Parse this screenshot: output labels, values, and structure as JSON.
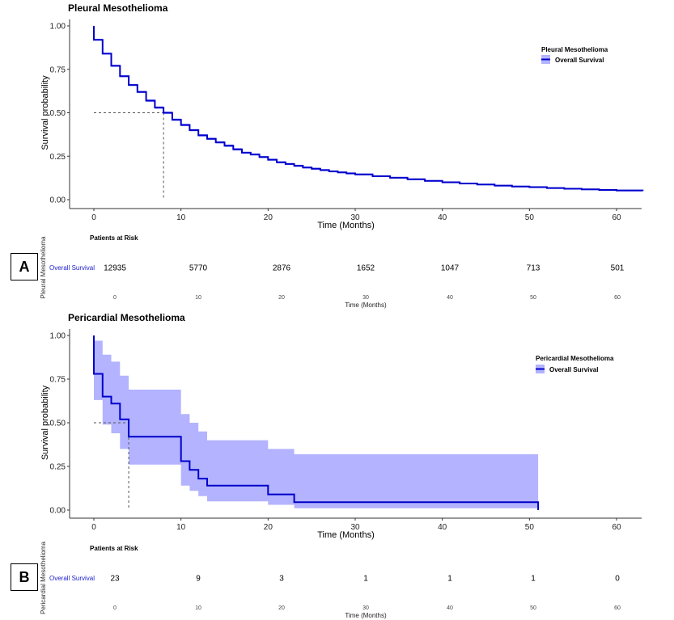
{
  "chart_data": [
    {
      "type": "line",
      "subtype": "kaplan-meier",
      "title": "Pleural Mesothelioma",
      "xlabel": "Time (Months)",
      "ylabel": "Survival probability",
      "xlim": [
        -3,
        63
      ],
      "ylim": [
        0,
        1
      ],
      "xticks": [
        0,
        10,
        20,
        30,
        40,
        50,
        60
      ],
      "yticks": [
        0.0,
        0.25,
        0.5,
        0.75,
        1.0
      ],
      "ytick_labels": [
        "0.00",
        "0.25",
        "0.50",
        "0.75",
        "1.00"
      ],
      "legend_title": "Pleural Mesothelioma",
      "legend_position": "top-right",
      "series": [
        {
          "name": "Overall Survival",
          "color": "#0000cc",
          "ci_color": "#b3b3ff",
          "x": [
            0,
            1,
            2,
            3,
            4,
            5,
            6,
            7,
            8,
            9,
            10,
            11,
            12,
            13,
            14,
            15,
            16,
            17,
            18,
            19,
            20,
            21,
            22,
            23,
            24,
            25,
            26,
            27,
            28,
            29,
            30,
            32,
            34,
            36,
            38,
            40,
            42,
            44,
            46,
            48,
            50,
            52,
            54,
            56,
            58,
            60,
            63
          ],
          "y": [
            0.92,
            0.84,
            0.77,
            0.71,
            0.66,
            0.62,
            0.57,
            0.53,
            0.5,
            0.46,
            0.43,
            0.4,
            0.37,
            0.35,
            0.33,
            0.31,
            0.29,
            0.27,
            0.26,
            0.245,
            0.23,
            0.215,
            0.205,
            0.195,
            0.185,
            0.178,
            0.17,
            0.163,
            0.157,
            0.151,
            0.145,
            0.135,
            0.126,
            0.117,
            0.108,
            0.1,
            0.093,
            0.087,
            0.081,
            0.076,
            0.072,
            0.067,
            0.063,
            0.059,
            0.056,
            0.053,
            0.05
          ],
          "ci_half_width": [
            0.005,
            0.005,
            0.006,
            0.006,
            0.006,
            0.006,
            0.007,
            0.007,
            0.007,
            0.007,
            0.007,
            0.007,
            0.007,
            0.007,
            0.007,
            0.007,
            0.007,
            0.006,
            0.006,
            0.006,
            0.006,
            0.006,
            0.006,
            0.006,
            0.006,
            0.006,
            0.006,
            0.006,
            0.006,
            0.006,
            0.006,
            0.005,
            0.005,
            0.005,
            0.005,
            0.005,
            0.005,
            0.005,
            0.005,
            0.005,
            0.005,
            0.005,
            0.005,
            0.005,
            0.005,
            0.005,
            0.005
          ]
        }
      ],
      "median": 8,
      "risk_table": {
        "title": "Patients at Risk",
        "strata_label": "Pleural Mesothelioma",
        "row_label": "Overall Survival",
        "times": [
          0,
          10,
          20,
          30,
          40,
          50,
          60
        ],
        "time_labels": [
          "0",
          "10",
          "20",
          "30",
          "40",
          "50",
          "60"
        ],
        "counts": [
          "12935",
          "5770",
          "2876",
          "1652",
          "1047",
          "713",
          "501"
        ],
        "xlabel": "Time (Months)"
      },
      "panel_label": "A"
    },
    {
      "type": "line",
      "subtype": "kaplan-meier",
      "title": "Pericardial Mesothelioma",
      "xlabel": "Time (Months)",
      "ylabel": "Survival probability",
      "xlim": [
        -3,
        63
      ],
      "ylim": [
        0,
        1
      ],
      "xticks": [
        0,
        10,
        20,
        30,
        40,
        50,
        60
      ],
      "yticks": [
        0.0,
        0.25,
        0.5,
        0.75,
        1.0
      ],
      "ytick_labels": [
        "0.00",
        "0.25",
        "0.50",
        "0.75",
        "1.00"
      ],
      "legend_title": "Pericardial Mesothelioma",
      "legend_position": "top-right",
      "series": [
        {
          "name": "Overall Survival",
          "color": "#0000cc",
          "ci_color": "#b3b3ff",
          "x": [
            0,
            1,
            2,
            3,
            4,
            10,
            11,
            12,
            13,
            20,
            23,
            51
          ],
          "y": [
            0.78,
            0.65,
            0.61,
            0.52,
            0.42,
            0.28,
            0.23,
            0.18,
            0.14,
            0.09,
            0.045,
            0.01
          ],
          "ci_lower": [
            0.63,
            0.49,
            0.44,
            0.35,
            0.26,
            0.14,
            0.11,
            0.08,
            0.05,
            0.03,
            0.01,
            0.01
          ],
          "ci_upper": [
            0.97,
            0.89,
            0.85,
            0.77,
            0.69,
            0.55,
            0.5,
            0.45,
            0.4,
            0.35,
            0.32,
            0.32
          ]
        }
      ],
      "median": 4,
      "risk_table": {
        "title": "Patients at Risk",
        "strata_label": "Pericardial Mesothelioma",
        "row_label": "Overall Survival",
        "times": [
          0,
          10,
          20,
          30,
          40,
          50,
          60
        ],
        "time_labels": [
          "0",
          "10",
          "20",
          "30",
          "40",
          "50",
          "60"
        ],
        "counts": [
          "23",
          "9",
          "3",
          "1",
          "1",
          "1",
          "0"
        ],
        "xlabel": "Time (Months)"
      },
      "panel_label": "B"
    }
  ]
}
